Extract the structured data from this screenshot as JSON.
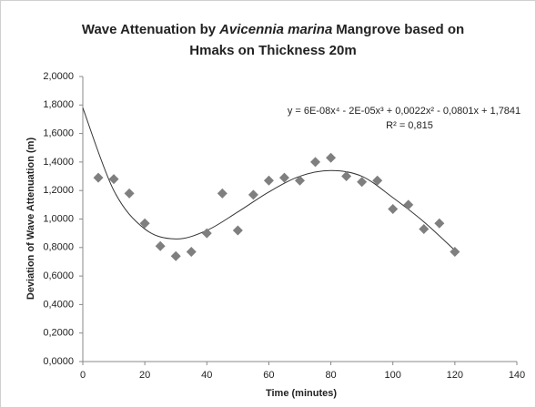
{
  "chart_data": {
    "type": "scatter",
    "title": [
      [
        {
          "text": "Wave Attenuation by"
        },
        {
          "text": "Avicennia marina",
          "style": "italic"
        },
        {
          "text": "Mangrove based on"
        }
      ],
      [
        {
          "text": "Hmaks on Thickness 20m"
        }
      ]
    ],
    "x_label": "Time (minutes)",
    "y_label": "Deviation of Wave Attenuation (m)",
    "series": [
      {
        "name": "Hmaks",
        "color": "#7f7f7f",
        "x": [
          5,
          10,
          15,
          20,
          25,
          30,
          35,
          40,
          45,
          50,
          55,
          60,
          65,
          70,
          75,
          80,
          85,
          90,
          95,
          100,
          105,
          110,
          115,
          120
        ],
        "values": [
          1.29,
          1.28,
          1.18,
          0.97,
          0.81,
          0.74,
          0.77,
          0.9,
          1.18,
          0.92,
          1.17,
          1.27,
          1.29,
          1.27,
          1.4,
          1.43,
          1.3,
          1.26,
          1.27,
          1.07,
          1.1,
          0.93,
          0.97,
          0.77
        ]
      }
    ],
    "trendline": {
      "color": "#333333",
      "x": [
        0,
        10,
        20,
        30,
        40,
        50,
        60,
        70,
        80,
        90,
        100,
        110,
        120
      ],
      "values": [
        1.78,
        1.2,
        0.93,
        0.86,
        0.92,
        1.05,
        1.19,
        1.3,
        1.34,
        1.3,
        1.15,
        0.98,
        0.78
      ],
      "equation": "y = 6E-08x⁴ - 2E-05x³ + 0,0022x² - 0,0801x + 1,7841",
      "r2": "R² = 0,815"
    },
    "xlim": [
      0,
      140
    ],
    "xticks": [
      0,
      20,
      40,
      60,
      80,
      100,
      120,
      140
    ],
    "ylim": [
      0,
      2
    ],
    "yticks": [
      {
        "value": 0,
        "label": "0,0000"
      },
      {
        "value": 0.2,
        "label": "0,2000"
      },
      {
        "value": 0.4,
        "label": "0,4000"
      },
      {
        "value": 0.6,
        "label": "0,6000"
      },
      {
        "value": 0.8,
        "label": "0,8000"
      },
      {
        "value": 1.0,
        "label": "1,0000"
      },
      {
        "value": 1.2,
        "label": "1,2000"
      },
      {
        "value": 1.4,
        "label": "1,4000"
      },
      {
        "value": 1.6,
        "label": "1,6000"
      },
      {
        "value": 1.8,
        "label": "1,8000"
      },
      {
        "value": 2.0,
        "label": "2,0000"
      }
    ],
    "grid": false
  }
}
